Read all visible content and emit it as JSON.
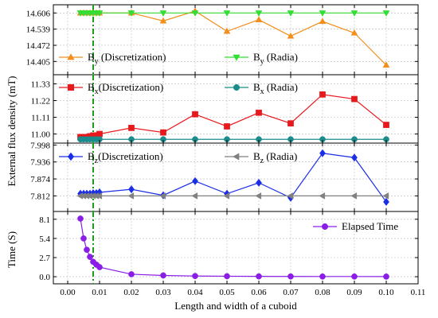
{
  "chart_data": {
    "type": "line",
    "xlabel": "Length and width of a cuboid",
    "ylabel": "External flux density (mT)",
    "x_ticks": [
      "0.00",
      "0.01",
      "0.02",
      "0.03",
      "0.04",
      "0.05",
      "0.06",
      "0.07",
      "0.08",
      "0.09",
      "0.10",
      "0.11"
    ],
    "xlim": [
      -0.0045,
      0.11
    ],
    "vline_x": 0.008,
    "grid": true,
    "panels": [
      {
        "id": "by",
        "ylim": [
          14.35,
          14.64
        ],
        "y_ticks": [
          14.405,
          14.472,
          14.539,
          14.606
        ],
        "y_tick_labels": [
          "14.405",
          "14.472",
          "14.539",
          "14.606"
        ],
        "legend_placement": "bottom-left",
        "series": [
          {
            "name_prefix": "B",
            "name_sub": "y",
            "name_suffix": " (Discretization)",
            "color": "#f28e1c",
            "marker": "triangle-up",
            "x": [
              0.004,
              0.005,
              0.006,
              0.007,
              0.008,
              0.009,
              0.01,
              0.02,
              0.03,
              0.04,
              0.05,
              0.06,
              0.07,
              0.08,
              0.09,
              0.1
            ],
            "y": [
              14.606,
              14.606,
              14.606,
              14.606,
              14.606,
              14.606,
              14.606,
              14.606,
              14.573,
              14.614,
              14.53,
              14.578,
              14.51,
              14.571,
              14.523,
              14.39
            ]
          },
          {
            "name_prefix": "B",
            "name_sub": "y",
            "name_suffix": " (Radia)",
            "color": "#33dd33",
            "marker": "triangle-down",
            "x": [
              0.004,
              0.005,
              0.006,
              0.007,
              0.008,
              0.009,
              0.01,
              0.02,
              0.03,
              0.04,
              0.05,
              0.06,
              0.07,
              0.08,
              0.09,
              0.1
            ],
            "y": [
              14.606,
              14.606,
              14.606,
              14.606,
              14.606,
              14.606,
              14.606,
              14.606,
              14.606,
              14.606,
              14.606,
              14.606,
              14.606,
              14.606,
              14.606,
              14.606
            ]
          }
        ]
      },
      {
        "id": "bx",
        "ylim": [
          10.94,
          11.39
        ],
        "y_ticks": [
          11.0,
          11.11,
          11.22,
          11.33
        ],
        "y_tick_labels": [
          "11.00",
          "11.11",
          "11.22",
          "11.33"
        ],
        "legend_placement": "top",
        "series": [
          {
            "name_prefix": "B",
            "name_sub": "x",
            "name_suffix": "(Discretization)",
            "color": "#e8181c",
            "marker": "square",
            "x": [
              0.004,
              0.005,
              0.006,
              0.007,
              0.008,
              0.009,
              0.01,
              0.02,
              0.03,
              0.04,
              0.05,
              0.06,
              0.07,
              0.08,
              0.09,
              0.1
            ],
            "y": [
              10.98,
              10.98,
              10.98,
              10.985,
              10.99,
              10.99,
              11.0,
              11.04,
              11.01,
              11.13,
              11.05,
              11.14,
              11.07,
              11.26,
              11.23,
              11.06
            ]
          },
          {
            "name_prefix": "B",
            "name_sub": "x",
            "name_suffix": " (Radia)",
            "color": "#1a8c8c",
            "marker": "circle",
            "x": [
              0.004,
              0.005,
              0.006,
              0.007,
              0.008,
              0.009,
              0.01,
              0.02,
              0.03,
              0.04,
              0.05,
              0.06,
              0.07,
              0.08,
              0.09,
              0.1
            ],
            "y": [
              10.965,
              10.965,
              10.965,
              10.965,
              10.965,
              10.965,
              10.965,
              10.965,
              10.965,
              10.965,
              10.965,
              10.965,
              10.965,
              10.965,
              10.965,
              10.965
            ]
          }
        ]
      },
      {
        "id": "bz",
        "ylim": [
          7.755,
          8.005
        ],
        "y_ticks": [
          7.812,
          7.874,
          7.936,
          7.998
        ],
        "y_tick_labels": [
          "7.812",
          "7.874",
          "7.936",
          "7.998"
        ],
        "legend_placement": "top",
        "series": [
          {
            "name_prefix": "B",
            "name_sub": "z",
            "name_suffix": "(Discretization)",
            "color": "#1a2ee6",
            "marker": "diamond",
            "x": [
              0.004,
              0.005,
              0.006,
              0.007,
              0.008,
              0.009,
              0.01,
              0.02,
              0.03,
              0.04,
              0.05,
              0.06,
              0.07,
              0.08,
              0.09,
              0.1
            ],
            "y": [
              7.82,
              7.82,
              7.82,
              7.82,
              7.822,
              7.822,
              7.825,
              7.836,
              7.814,
              7.866,
              7.82,
              7.86,
              7.805,
              7.968,
              7.952,
              7.79
            ]
          },
          {
            "name_prefix": "B",
            "name_sub": "z",
            "name_suffix": " (Radia)",
            "color": "#808080",
            "marker": "triangle-left",
            "x": [
              0.004,
              0.005,
              0.006,
              0.007,
              0.008,
              0.009,
              0.01,
              0.02,
              0.03,
              0.04,
              0.05,
              0.06,
              0.07,
              0.08,
              0.09,
              0.1
            ],
            "y": [
              7.812,
              7.812,
              7.812,
              7.812,
              7.812,
              7.812,
              7.812,
              7.812,
              7.812,
              7.812,
              7.812,
              7.812,
              7.812,
              7.812,
              7.812,
              7.812
            ]
          }
        ]
      },
      {
        "id": "time",
        "ylabel": "Time (S)",
        "ylim": [
          -1.0,
          9.2
        ],
        "y_ticks": [
          0.0,
          2.7,
          5.4,
          8.1
        ],
        "y_tick_labels": [
          "0.0",
          "2.7",
          "5.4",
          "8.1"
        ],
        "legend_placement": "top-right",
        "series": [
          {
            "name_prefix": "Elapsed Time",
            "name_sub": "",
            "name_suffix": "",
            "color": "#8a1ee6",
            "marker": "circle",
            "x": [
              0.004,
              0.005,
              0.006,
              0.007,
              0.008,
              0.009,
              0.01,
              0.02,
              0.03,
              0.04,
              0.05,
              0.06,
              0.07,
              0.08,
              0.09,
              0.1
            ],
            "y": [
              8.2,
              5.4,
              3.8,
              2.8,
              2.1,
              1.7,
              1.35,
              0.35,
              0.18,
              0.1,
              0.07,
              0.05,
              0.04,
              0.03,
              0.03,
              0.02
            ]
          }
        ]
      }
    ]
  }
}
